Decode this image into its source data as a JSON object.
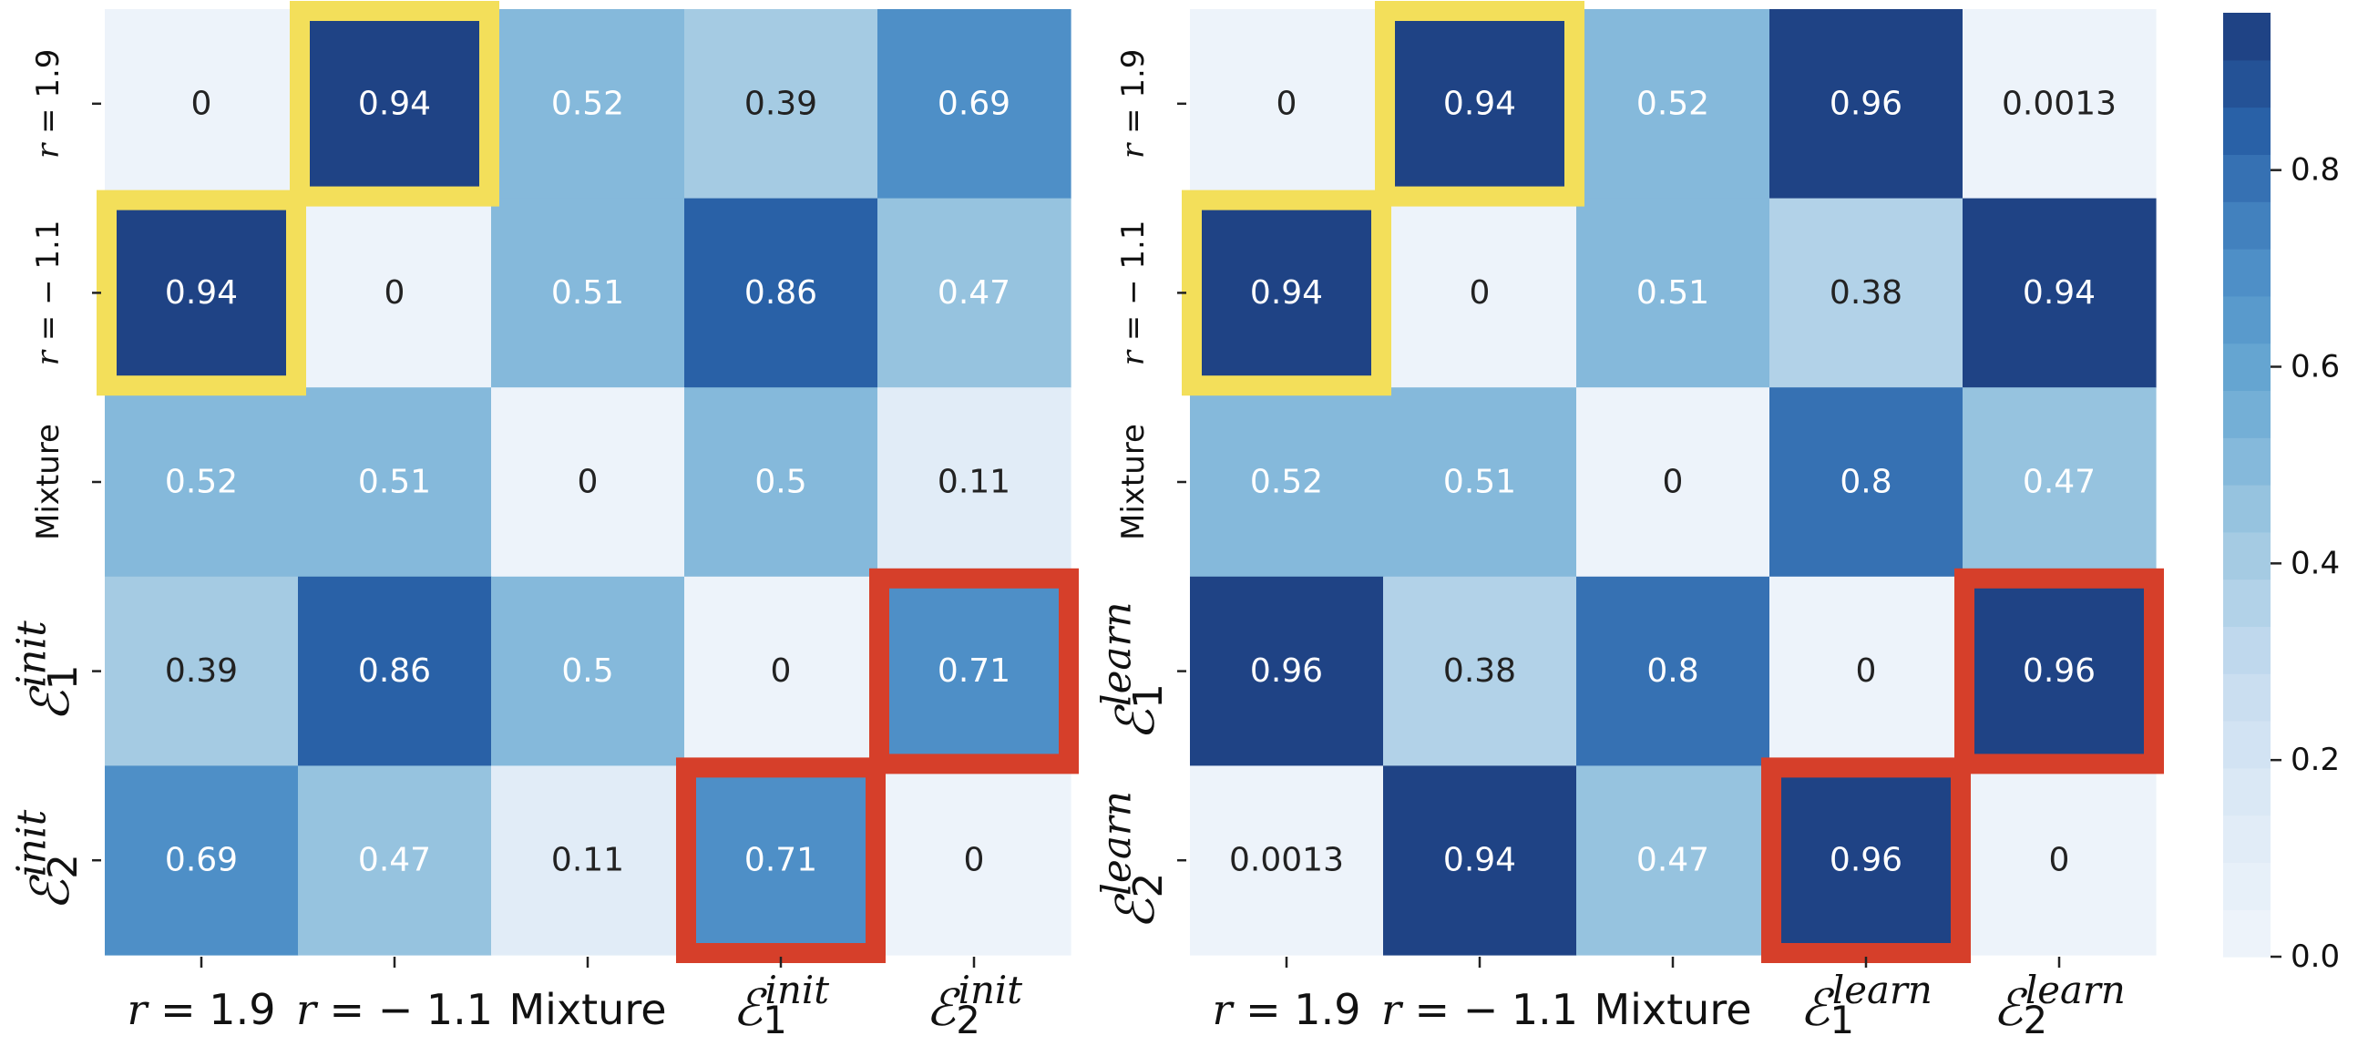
{
  "chart_data": [
    {
      "type": "heatmap",
      "name": "init",
      "row_labels": [
        "r = 1.9",
        "r = − 1.1",
        "Mixture",
        "ℰ1init",
        "ℰ2init"
      ],
      "col_labels": [
        "r = 1.9",
        "r = − 1.1",
        "Mixture",
        "ℰ1init",
        "ℰ2init"
      ],
      "cell_labels": [
        [
          "0",
          "0.94",
          "0.52",
          "0.39",
          "0.69"
        ],
        [
          "0.94",
          "0",
          "0.51",
          "0.86",
          "0.47"
        ],
        [
          "0.52",
          "0.51",
          "0",
          "0.5",
          "0.11"
        ],
        [
          "0.39",
          "0.86",
          "0.5",
          "0",
          "0.71"
        ],
        [
          "0.69",
          "0.47",
          "0.11",
          "0.71",
          "0"
        ]
      ],
      "values": [
        [
          0,
          0.94,
          0.52,
          0.39,
          0.69
        ],
        [
          0.94,
          0,
          0.51,
          0.86,
          0.47
        ],
        [
          0.52,
          0.51,
          0,
          0.5,
          0.11
        ],
        [
          0.39,
          0.86,
          0.5,
          0,
          0.71
        ],
        [
          0.69,
          0.47,
          0.11,
          0.71,
          0
        ]
      ],
      "highlights": [
        {
          "row": 0,
          "col": 1,
          "color": "#f3df5a"
        },
        {
          "row": 1,
          "col": 0,
          "color": "#f3df5a"
        },
        {
          "row": 3,
          "col": 4,
          "color": "#d63f2a"
        },
        {
          "row": 4,
          "col": 3,
          "color": "#d63f2a"
        }
      ]
    },
    {
      "type": "heatmap",
      "name": "learn",
      "row_labels": [
        "r = 1.9",
        "r = − 1.1",
        "Mixture",
        "ℰ1learn",
        "ℰ2learn"
      ],
      "col_labels": [
        "r = 1.9",
        "r = − 1.1",
        "Mixture",
        "ℰ1learn",
        "ℰ2learn"
      ],
      "cell_labels": [
        [
          "0",
          "0.94",
          "0.52",
          "0.96",
          "0.0013"
        ],
        [
          "0.94",
          "0",
          "0.51",
          "0.38",
          "0.94"
        ],
        [
          "0.52",
          "0.51",
          "0",
          "0.8",
          "0.47"
        ],
        [
          "0.96",
          "0.38",
          "0.8",
          "0",
          "0.96"
        ],
        [
          "0.0013",
          "0.94",
          "0.47",
          "0.96",
          "0"
        ]
      ],
      "values": [
        [
          0,
          0.94,
          0.52,
          0.96,
          0.0013
        ],
        [
          0.94,
          0,
          0.51,
          0.38,
          0.94
        ],
        [
          0.52,
          0.51,
          0,
          0.8,
          0.47
        ],
        [
          0.96,
          0.38,
          0.8,
          0,
          0.96
        ],
        [
          0.0013,
          0.94,
          0.47,
          0.96,
          0
        ]
      ],
      "highlights": [
        {
          "row": 0,
          "col": 1,
          "color": "#f3df5a"
        },
        {
          "row": 1,
          "col": 0,
          "color": "#f3df5a"
        },
        {
          "row": 3,
          "col": 4,
          "color": "#d63f2a"
        },
        {
          "row": 4,
          "col": 3,
          "color": "#d63f2a"
        }
      ]
    }
  ],
  "colorbar": {
    "vmin": 0,
    "vmax": 0.96,
    "levels": 20,
    "ticks": [
      0,
      0.2,
      0.4,
      0.6,
      0.8
    ],
    "tick_labels": [
      "0.0",
      "0.2",
      "0.4",
      "0.6",
      "0.8"
    ],
    "low_color": "#f0f5fb",
    "high_color": "#1c3c7c"
  }
}
